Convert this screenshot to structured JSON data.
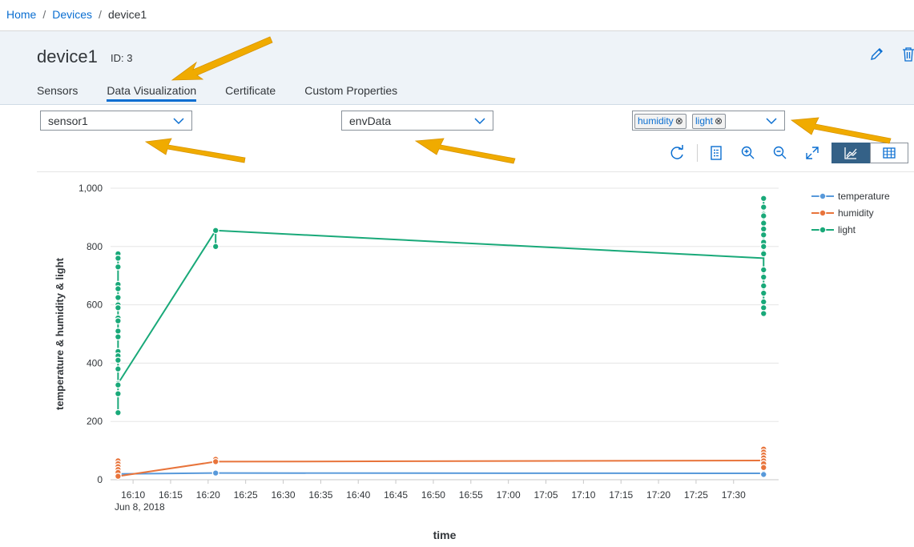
{
  "breadcrumb": {
    "home": "Home",
    "devices": "Devices",
    "current": "device1"
  },
  "header": {
    "title": "device1",
    "id_label": "ID: 3"
  },
  "tabs": [
    "Sensors",
    "Data Visualization",
    "Certificate",
    "Custom Properties"
  ],
  "active_tab": "Data Visualization",
  "filters": {
    "sensor": {
      "value": "sensor1"
    },
    "capability": {
      "value": "envData"
    },
    "properties": {
      "tokens": [
        "humidity",
        "light"
      ]
    }
  },
  "toolbar": {
    "icons": [
      "refresh-icon",
      "legend-icon",
      "zoom-in-icon",
      "zoom-out-icon",
      "fullscreen-icon",
      "chart-view-icon",
      "table-view-icon"
    ],
    "active_view": "chart"
  },
  "colors": {
    "accent": "#0a6ed1",
    "temperature": "#5899da",
    "humidity": "#e8743b",
    "light": "#19a979",
    "annotation_arrow": "#f0ab00"
  },
  "chart_data": {
    "type": "line",
    "title": "",
    "xlabel": "time",
    "ylabel": "temperature & humidity & light",
    "x_date_label": "Jun 8, 2018",
    "x_tick_labels": [
      "16:10",
      "16:15",
      "16:20",
      "16:25",
      "16:30",
      "16:35",
      "16:40",
      "16:45",
      "16:50",
      "16:55",
      "17:00",
      "17:05",
      "17:10",
      "17:15",
      "17:20",
      "17:25",
      "17:30"
    ],
    "xlim": [
      "16:07",
      "17:36"
    ],
    "ylim": [
      0,
      1000
    ],
    "y_ticks": [
      0,
      200,
      400,
      600,
      800,
      1000
    ],
    "y_tick_labels": [
      "0",
      "200",
      "400",
      "600",
      "800",
      "1,000"
    ],
    "grid": true,
    "legend_position": "top-right",
    "series": [
      {
        "name": "temperature",
        "color": "#5899da",
        "points": [
          {
            "x": "16:08",
            "y": 20
          },
          {
            "x": "16:21",
            "y": 23
          },
          {
            "x": "17:34",
            "y": 22
          },
          {
            "x": "17:34",
            "y": 18
          }
        ],
        "line": [
          {
            "x": "16:08",
            "y": 20
          },
          {
            "x": "16:21",
            "y": 23
          },
          {
            "x": "17:34",
            "y": 22
          }
        ]
      },
      {
        "name": "humidity",
        "color": "#e8743b",
        "points": [
          {
            "x": "16:08",
            "y": 65
          },
          {
            "x": "16:08",
            "y": 55
          },
          {
            "x": "16:08",
            "y": 45
          },
          {
            "x": "16:08",
            "y": 35
          },
          {
            "x": "16:08",
            "y": 25
          },
          {
            "x": "16:08",
            "y": 12
          },
          {
            "x": "16:21",
            "y": 70
          },
          {
            "x": "16:21",
            "y": 62
          },
          {
            "x": "17:34",
            "y": 105
          },
          {
            "x": "17:34",
            "y": 95
          },
          {
            "x": "17:34",
            "y": 85
          },
          {
            "x": "17:34",
            "y": 75
          },
          {
            "x": "17:34",
            "y": 65
          },
          {
            "x": "17:34",
            "y": 55
          },
          {
            "x": "17:34",
            "y": 42
          }
        ],
        "line": [
          {
            "x": "16:08",
            "y": 12
          },
          {
            "x": "16:21",
            "y": 62
          },
          {
            "x": "17:34",
            "y": 66
          }
        ]
      },
      {
        "name": "light",
        "color": "#19a979",
        "points": [
          {
            "x": "16:08",
            "y": 775
          },
          {
            "x": "16:08",
            "y": 760
          },
          {
            "x": "16:08",
            "y": 730
          },
          {
            "x": "16:08",
            "y": 670
          },
          {
            "x": "16:08",
            "y": 655
          },
          {
            "x": "16:08",
            "y": 625
          },
          {
            "x": "16:08",
            "y": 600
          },
          {
            "x": "16:08",
            "y": 590
          },
          {
            "x": "16:08",
            "y": 555
          },
          {
            "x": "16:08",
            "y": 545
          },
          {
            "x": "16:08",
            "y": 510
          },
          {
            "x": "16:08",
            "y": 490
          },
          {
            "x": "16:08",
            "y": 440
          },
          {
            "x": "16:08",
            "y": 425
          },
          {
            "x": "16:08",
            "y": 410
          },
          {
            "x": "16:08",
            "y": 380
          },
          {
            "x": "16:08",
            "y": 330
          },
          {
            "x": "16:08",
            "y": 325
          },
          {
            "x": "16:08",
            "y": 295
          },
          {
            "x": "16:08",
            "y": 230
          },
          {
            "x": "16:21",
            "y": 855
          },
          {
            "x": "16:21",
            "y": 800
          },
          {
            "x": "17:34",
            "y": 965
          },
          {
            "x": "17:34",
            "y": 935
          },
          {
            "x": "17:34",
            "y": 910
          },
          {
            "x": "17:34",
            "y": 905
          },
          {
            "x": "17:34",
            "y": 880
          },
          {
            "x": "17:34",
            "y": 860
          },
          {
            "x": "17:34",
            "y": 840
          },
          {
            "x": "17:34",
            "y": 815
          },
          {
            "x": "17:34",
            "y": 800
          },
          {
            "x": "17:34",
            "y": 775
          },
          {
            "x": "17:34",
            "y": 720
          },
          {
            "x": "17:34",
            "y": 695
          },
          {
            "x": "17:34",
            "y": 665
          },
          {
            "x": "17:34",
            "y": 640
          },
          {
            "x": "17:34",
            "y": 610
          },
          {
            "x": "17:34",
            "y": 590
          },
          {
            "x": "17:34",
            "y": 570
          }
        ],
        "line": [
          {
            "x": "16:08",
            "y": 330
          },
          {
            "x": "16:21",
            "y": 855
          },
          {
            "x": "17:34",
            "y": 760
          }
        ]
      }
    ]
  }
}
